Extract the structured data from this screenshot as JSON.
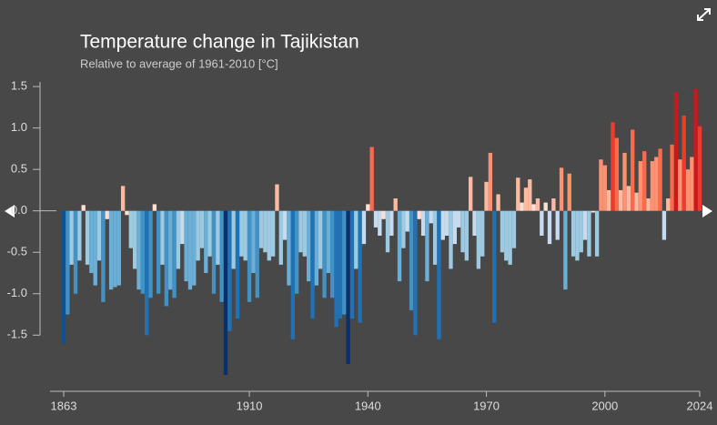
{
  "chart_data": {
    "type": "bar",
    "title": "Temperature change in Tajikistan",
    "subtitle": "Relative to average of 1961-2010  [°C]",
    "x": [
      1863,
      1864,
      1865,
      1866,
      1867,
      1868,
      1869,
      1870,
      1871,
      1872,
      1873,
      1874,
      1875,
      1876,
      1877,
      1878,
      1879,
      1880,
      1881,
      1882,
      1883,
      1884,
      1885,
      1886,
      1887,
      1888,
      1889,
      1890,
      1891,
      1892,
      1893,
      1894,
      1895,
      1896,
      1897,
      1898,
      1899,
      1900,
      1901,
      1902,
      1903,
      1904,
      1905,
      1906,
      1907,
      1908,
      1909,
      1910,
      1911,
      1912,
      1913,
      1914,
      1915,
      1916,
      1917,
      1918,
      1919,
      1920,
      1921,
      1922,
      1923,
      1924,
      1925,
      1926,
      1927,
      1928,
      1929,
      1930,
      1931,
      1932,
      1933,
      1934,
      1935,
      1936,
      1937,
      1938,
      1939,
      1940,
      1941,
      1942,
      1943,
      1944,
      1945,
      1946,
      1947,
      1948,
      1949,
      1950,
      1951,
      1952,
      1953,
      1954,
      1955,
      1956,
      1957,
      1958,
      1959,
      1960,
      1961,
      1962,
      1963,
      1964,
      1965,
      1966,
      1967,
      1968,
      1969,
      1970,
      1971,
      1972,
      1973,
      1974,
      1975,
      1976,
      1977,
      1978,
      1979,
      1980,
      1981,
      1982,
      1983,
      1984,
      1985,
      1986,
      1987,
      1988,
      1989,
      1990,
      1991,
      1992,
      1993,
      1994,
      1995,
      1996,
      1997,
      1998,
      1999,
      2000,
      2001,
      2002,
      2003,
      2004,
      2005,
      2006,
      2007,
      2008,
      2009,
      2010,
      2011,
      2012,
      2013,
      2014,
      2015,
      2016,
      2017,
      2018,
      2019,
      2020,
      2021,
      2022,
      2023,
      2024
    ],
    "values": [
      -1.6,
      -1.25,
      -0.65,
      -1.0,
      -0.6,
      0.07,
      -0.65,
      -0.75,
      -0.9,
      -0.6,
      -1.1,
      -0.1,
      -0.95,
      -0.92,
      -0.9,
      0.3,
      -0.05,
      -0.45,
      -0.7,
      -0.95,
      -1.0,
      -1.5,
      -1.05,
      0.08,
      -1.0,
      -0.65,
      -1.15,
      -0.95,
      -1.05,
      -0.7,
      -0.4,
      -0.85,
      -0.95,
      -0.9,
      -0.6,
      -0.45,
      -0.75,
      -0.55,
      -1.0,
      -0.65,
      -1.1,
      -1.98,
      -1.45,
      -0.7,
      -1.3,
      -0.55,
      -0.6,
      -1.1,
      -0.75,
      -1.05,
      -0.45,
      -0.5,
      -0.6,
      -0.55,
      0.32,
      -0.65,
      -0.35,
      -0.9,
      -1.55,
      -1.0,
      -0.5,
      -0.55,
      -0.85,
      -1.3,
      -0.9,
      -0.7,
      -1.05,
      -0.75,
      -1.05,
      -1.4,
      -1.3,
      -1.25,
      -1.85,
      -1.3,
      -0.7,
      -1.35,
      -0.4,
      0.08,
      0.77,
      -0.2,
      -0.3,
      -0.1,
      -0.5,
      -0.3,
      0.15,
      -0.85,
      -0.45,
      -0.25,
      -1.2,
      -1.5,
      -0.1,
      -0.3,
      -0.85,
      -0.15,
      -0.65,
      -1.55,
      -0.35,
      -0.3,
      -0.7,
      -0.4,
      -0.2,
      -0.5,
      -0.6,
      0.41,
      -0.3,
      -0.7,
      -0.55,
      0.35,
      0.7,
      -1.35,
      0.2,
      -0.5,
      -0.6,
      -0.65,
      -0.45,
      0.4,
      0.1,
      0.28,
      0.38,
      0.08,
      0.15,
      -0.3,
      0.1,
      -0.4,
      0.15,
      -0.35,
      0.52,
      -0.95,
      0.45,
      -0.55,
      -0.6,
      -0.5,
      -0.35,
      -0.55,
      -0.02,
      -0.55,
      0.62,
      0.55,
      0.25,
      1.07,
      0.88,
      0.25,
      0.7,
      0.3,
      0.98,
      0.22,
      0.6,
      0.72,
      0.15,
      0.6,
      0.65,
      0.75,
      -0.35,
      0.15,
      0.8,
      1.43,
      0.62,
      1.15,
      0.5,
      0.65,
      1.47,
      1.02
    ],
    "colormap": [
      "#08306b",
      "#08519c",
      "#2171b5",
      "#4292c6",
      "#6baed6",
      "#9ecae1",
      "#c6dbef",
      "#fee0d2",
      "#fcbba1",
      "#fc9272",
      "#fb6a4a",
      "#ef3b2c",
      "#cb181d",
      "#a50f15",
      "#67000d"
    ],
    "xlim": [
      1863,
      2024
    ],
    "xticks": [
      1863,
      1910,
      1940,
      1970,
      2000,
      2024
    ],
    "ylim": [
      -2.2,
      1.6
    ],
    "yticks": [
      1.5,
      {
        "value": 1,
        "label": "1.0"
      },
      0.5,
      {
        "value": 0,
        "label": "0.0"
      },
      -0.5,
      {
        "value": -1,
        "label": "-1.0"
      },
      -1.5
    ]
  }
}
